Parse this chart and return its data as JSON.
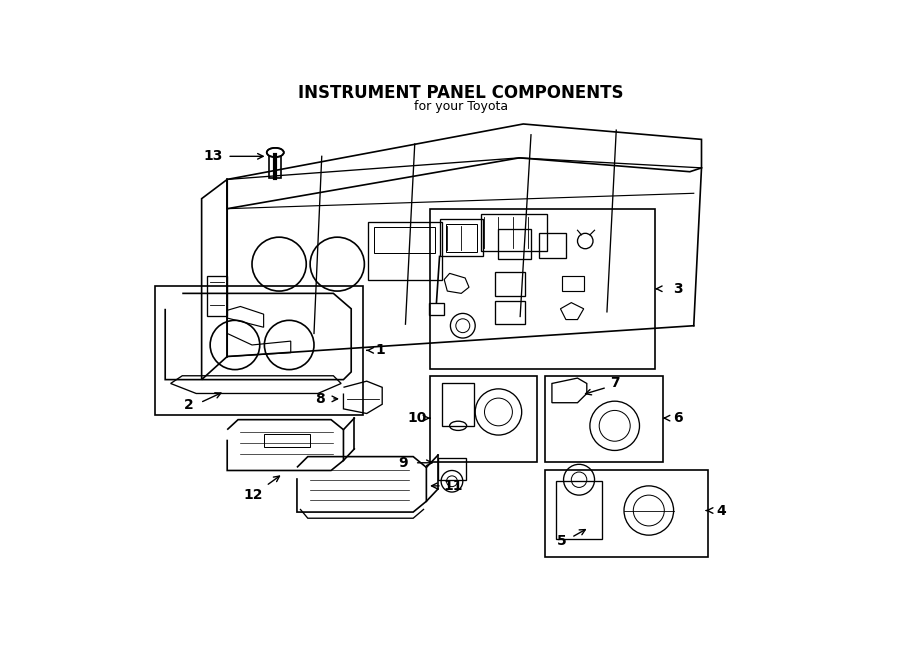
{
  "title": "INSTRUMENT PANEL COMPONENTS",
  "subtitle": "for your Toyota",
  "bg_color": "#ffffff",
  "line_color": "#000000",
  "text_color": "#000000",
  "fig_width": 9.0,
  "fig_height": 6.61,
  "dpi": 100
}
